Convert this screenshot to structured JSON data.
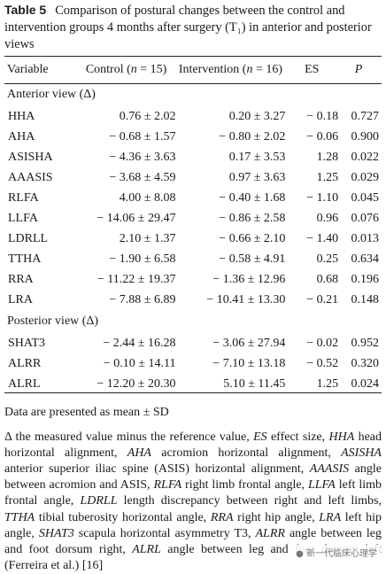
{
  "caption": {
    "label": "Table 5",
    "text": "Comparison of postural changes between the control and intervention groups 4 months after surgery (T₁) in anterior and posterior views"
  },
  "table": {
    "headers": {
      "variable": "Variable",
      "control": "Control (n = 15)",
      "intervention": "Intervention (n = 16)",
      "es": "ES",
      "p": "P"
    },
    "sections": [
      {
        "title": "Anterior view (Δ)",
        "rows": [
          {
            "variable": "HHA",
            "control": "0.76 ± 2.02",
            "intervention": "0.20 ± 3.27",
            "es": "− 0.18",
            "p": "0.727"
          },
          {
            "variable": "AHA",
            "control": "− 0.68 ± 1.57",
            "intervention": "− 0.80 ± 2.02",
            "es": "− 0.06",
            "p": "0.900"
          },
          {
            "variable": "ASISHA",
            "control": "− 4.36 ± 3.63",
            "intervention": "0.17 ± 3.53",
            "es": "1.28",
            "p": "0.022"
          },
          {
            "variable": "AAASIS",
            "control": "− 3.68 ± 4.59",
            "intervention": "0.97 ± 3.63",
            "es": "1.25",
            "p": "0.029"
          },
          {
            "variable": "RLFA",
            "control": "4.00 ± 8.08",
            "intervention": "− 0.40 ± 1.68",
            "es": "− 1.10",
            "p": "0.045"
          },
          {
            "variable": "LLFA",
            "control": "− 14.06 ± 29.47",
            "intervention": "− 0.86 ± 2.58",
            "es": "0.96",
            "p": "0.076"
          },
          {
            "variable": "LDRLL",
            "control": "2.10 ± 1.37",
            "intervention": "− 0.66 ± 2.10",
            "es": "− 1.40",
            "p": "0.013"
          },
          {
            "variable": "TTHA",
            "control": "− 1.90 ± 6.58",
            "intervention": "− 0.58 ± 4.91",
            "es": "0.25",
            "p": "0.634"
          },
          {
            "variable": "RRA",
            "control": "− 11.22 ± 19.37",
            "intervention": "− 1.36 ± 12.96",
            "es": "0.68",
            "p": "0.196"
          },
          {
            "variable": "LRA",
            "control": "− 7.88 ± 6.89",
            "intervention": "− 10.41 ± 13.30",
            "es": "− 0.21",
            "p": "0.148"
          }
        ]
      },
      {
        "title": "Posterior view (Δ)",
        "rows": [
          {
            "variable": "SHAT3",
            "control": "− 2.44 ± 16.28",
            "intervention": "− 3.06 ± 27.94",
            "es": "− 0.02",
            "p": "0.952"
          },
          {
            "variable": "ALRR",
            "control": "− 0.10 ± 14.11",
            "intervention": "− 7.10 ± 13.18",
            "es": "− 0.52",
            "p": "0.320"
          },
          {
            "variable": "ALRL",
            "control": "− 12.20 ± 20.30",
            "intervention": "5.10 ± 11.45",
            "es": "1.25",
            "p": "0.024"
          }
        ]
      }
    ]
  },
  "notes": {
    "line1": "Data are presented as mean ± SD",
    "line2": "Δ the measured value minus the reference value, ES effect size, HHA head horizontal alignment, AHA acromion horizontal alignment, ASISHA anterior superior iliac spine (ASIS) horizontal alignment, AAASIS angle between acromion and ASIS, RLFA right limb frontal angle, LLFA left limb frontal angle, LDRLL length discrepancy between right and left limbs, TTHA tibial tuberosity horizontal angle, RRA right hip angle, LRA left hip angle, SHAT3 scapula horizontal asymmetry T3, ALRR angle between leg and foot dorsum right, ALRL angle between leg and foot dorsum left (Ferreira et al.) [16]"
  },
  "watermark": {
    "text": "新一代临床心理学"
  }
}
